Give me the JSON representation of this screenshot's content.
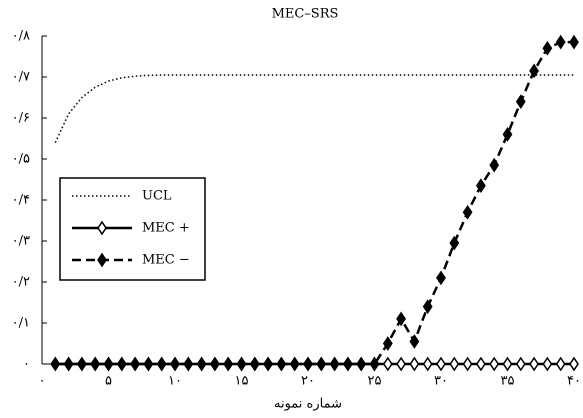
{
  "chart_data": {
    "type": "line",
    "title": "MEC–SRS",
    "x_label": "شماره نمونه",
    "x": [
      1,
      2,
      3,
      4,
      5,
      6,
      7,
      8,
      9,
      10,
      11,
      12,
      13,
      14,
      15,
      16,
      17,
      18,
      19,
      20,
      21,
      22,
      23,
      24,
      25,
      26,
      27,
      28,
      29,
      30,
      31,
      32,
      33,
      34,
      35,
      36,
      37,
      38,
      39,
      40
    ],
    "series": [
      {
        "name": "UCL",
        "color": "#000000",
        "line_style": "dotted",
        "marker": "none",
        "values": [
          0.54,
          0.61,
          0.65,
          0.675,
          0.69,
          0.698,
          0.702,
          0.704,
          0.705,
          0.705,
          0.705,
          0.705,
          0.705,
          0.705,
          0.705,
          0.705,
          0.705,
          0.705,
          0.705,
          0.705,
          0.705,
          0.705,
          0.705,
          0.705,
          0.705,
          0.705,
          0.705,
          0.705,
          0.705,
          0.705,
          0.705,
          0.705,
          0.705,
          0.705,
          0.705,
          0.705,
          0.705,
          0.705,
          0.705,
          0.705
        ]
      },
      {
        "name": "MEC +",
        "color": "#000000",
        "line_style": "solid",
        "marker": "hollow-diamond",
        "values": [
          0,
          0,
          0,
          0,
          0,
          0,
          0,
          0,
          0,
          0,
          0,
          0,
          0,
          0,
          0,
          0,
          0,
          0,
          0,
          0,
          0,
          0,
          0,
          0,
          0,
          0,
          0,
          0,
          0,
          0,
          0,
          0,
          0,
          0,
          0,
          0,
          0,
          0,
          0,
          0
        ]
      },
      {
        "name": "MEC −",
        "color": "#000000",
        "line_style": "dashed",
        "marker": "filled-diamond",
        "values": [
          0,
          0,
          0,
          0,
          0,
          0,
          0,
          0,
          0,
          0,
          0,
          0,
          0,
          0,
          0,
          0,
          0,
          0,
          0,
          0,
          0,
          0,
          0,
          0,
          0,
          0.05,
          0.11,
          0.055,
          0.14,
          0.21,
          0.295,
          0.37,
          0.435,
          0.485,
          0.56,
          0.64,
          0.715,
          0.77,
          0.785,
          0.785
        ]
      }
    ],
    "xlim": [
      0,
      40
    ],
    "xticks": [
      {
        "value": 0,
        "label": "۰"
      },
      {
        "value": 5,
        "label": "۵"
      },
      {
        "value": 10,
        "label": "۱۰"
      },
      {
        "value": 15,
        "label": "۱۵"
      },
      {
        "value": 20,
        "label": "۲۰"
      },
      {
        "value": 25,
        "label": "۲۵"
      },
      {
        "value": 30,
        "label": "۳۰"
      },
      {
        "value": 35,
        "label": "۳۵"
      },
      {
        "value": 40,
        "label": "۴۰"
      }
    ],
    "ylim": [
      0,
      0.8
    ],
    "yticks": [
      {
        "value": 0,
        "label": "۰"
      },
      {
        "value": 0.1,
        "label": "۰/۱"
      },
      {
        "value": 0.2,
        "label": "۰/۲"
      },
      {
        "value": 0.3,
        "label": "۰/۳"
      },
      {
        "value": 0.4,
        "label": "۰/۴"
      },
      {
        "value": 0.5,
        "label": "۰/۵"
      },
      {
        "value": 0.6,
        "label": "۰/۶"
      },
      {
        "value": 0.7,
        "label": "۰/۷"
      },
      {
        "value": 0.8,
        "label": "۰/۸"
      }
    ],
    "legend": "left"
  }
}
